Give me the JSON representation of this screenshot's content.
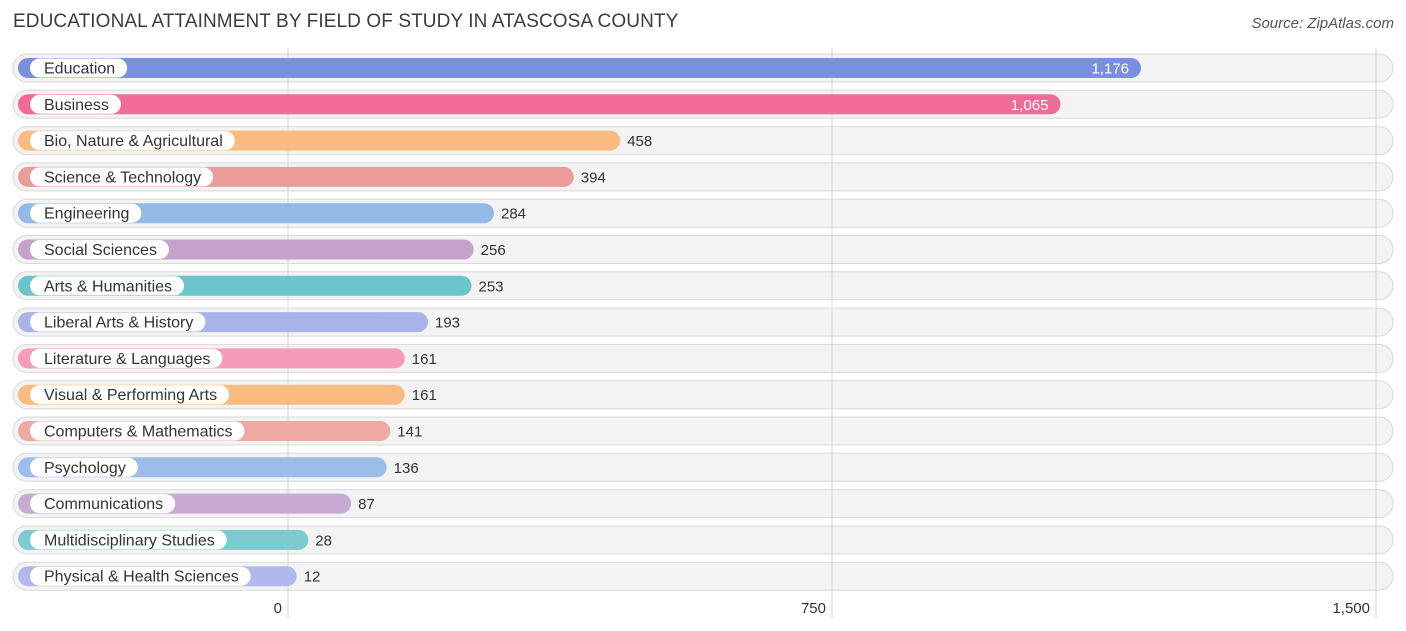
{
  "header": {
    "title": "EDUCATIONAL ATTAINMENT BY FIELD OF STUDY IN ATASCOSA COUNTY",
    "source": "Source: ZipAtlas.com"
  },
  "chart_data": {
    "type": "bar",
    "orientation": "horizontal",
    "title": "EDUCATIONAL ATTAINMENT BY FIELD OF STUDY IN ATASCOSA COUNTY",
    "xlabel": "",
    "ylabel": "",
    "xlim": [
      0,
      1500
    ],
    "x_ticks": [
      {
        "value": 0,
        "label": "0"
      },
      {
        "value": 750,
        "label": "750"
      },
      {
        "value": 1500,
        "label": "1,500"
      }
    ],
    "grid": true,
    "categories": [
      "Education",
      "Business",
      "Bio, Nature & Agricultural",
      "Science & Technology",
      "Engineering",
      "Social Sciences",
      "Arts & Humanities",
      "Liberal Arts & History",
      "Literature & Languages",
      "Visual & Performing Arts",
      "Computers & Mathematics",
      "Psychology",
      "Communications",
      "Multidisciplinary Studies",
      "Physical & Health Sciences"
    ],
    "values": [
      1176,
      1065,
      458,
      394,
      284,
      256,
      253,
      193,
      161,
      161,
      141,
      136,
      87,
      28,
      12
    ],
    "value_labels": [
      "1,176",
      "1,065",
      "458",
      "394",
      "284",
      "256",
      "253",
      "193",
      "161",
      "161",
      "141",
      "136",
      "87",
      "28",
      "12"
    ],
    "colors": [
      "#7b8fdf",
      "#f26b98",
      "#f9bb80",
      "#eb9c98",
      "#94b9e6",
      "#c4a2cc",
      "#6cc4cd",
      "#aab3e7",
      "#f59db8",
      "#f9bb80",
      "#eea9a3",
      "#9cbde9",
      "#c8a9d1",
      "#7ccbd0",
      "#b1b9ec"
    ]
  }
}
